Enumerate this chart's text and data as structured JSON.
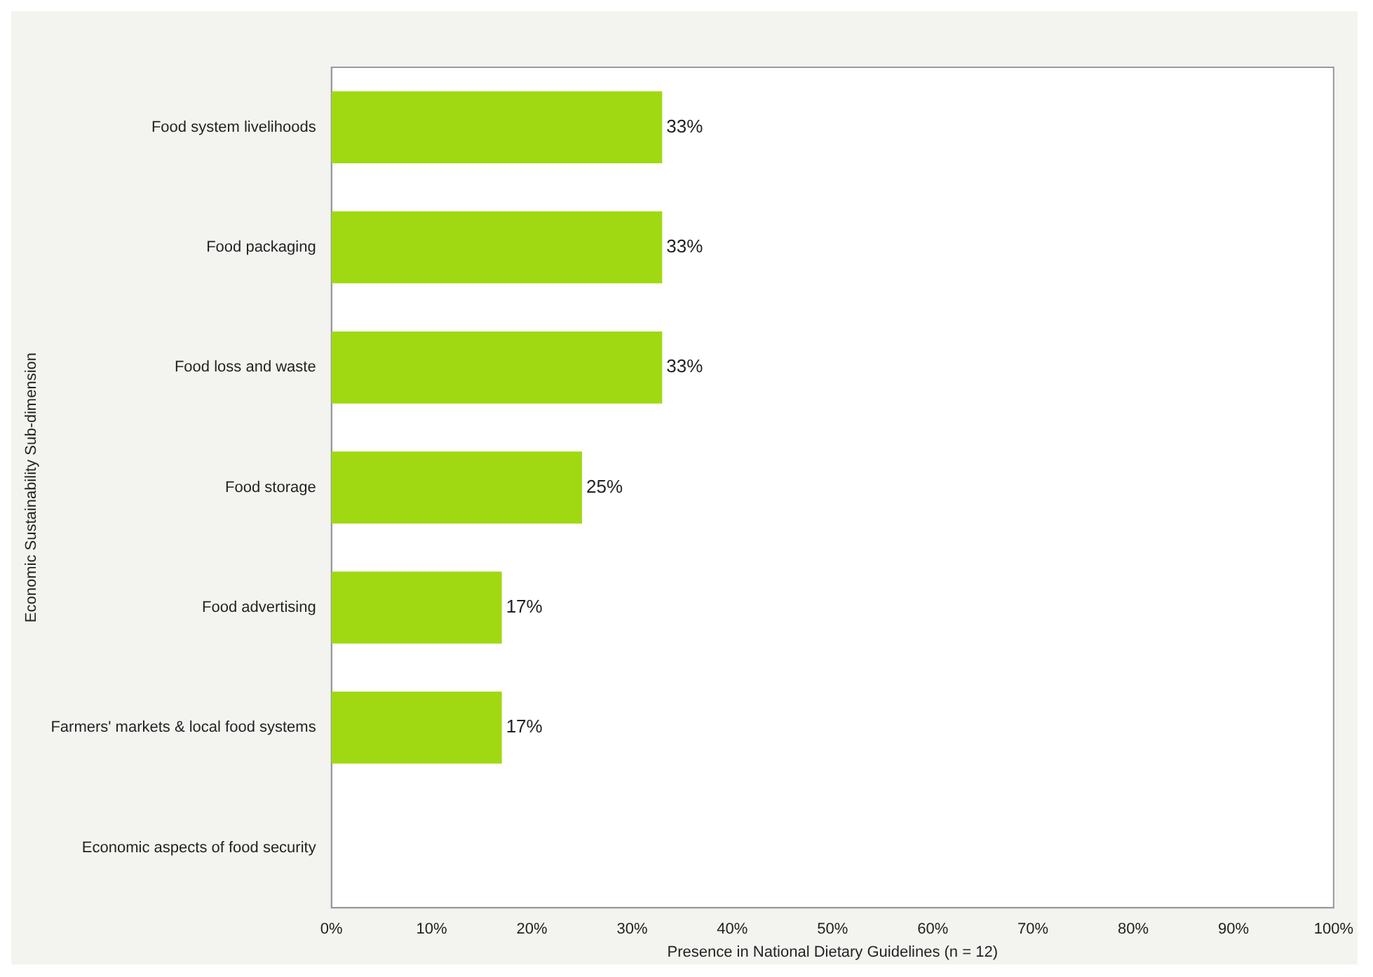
{
  "chart_data": {
    "type": "bar",
    "orientation": "horizontal",
    "xlabel": "Presence in National Dietary Guidelines (n = 12)",
    "ylabel": "Economic Sustainability Sub-dimension",
    "categories": [
      "Food system livelihoods",
      "Food packaging",
      "Food loss and waste",
      "Food storage",
      "Food advertising",
      "Farmers' markets & local food systems",
      "Economic aspects of food security"
    ],
    "values": [
      33,
      33,
      33,
      25,
      17,
      17,
      0
    ],
    "value_labels": [
      "33%",
      "33%",
      "33%",
      "25%",
      "17%",
      "17%",
      null
    ],
    "color": "#a0d911",
    "xlim": [
      0,
      100
    ],
    "xticks": [
      {
        "value": 0,
        "label": "0%"
      },
      {
        "value": 10,
        "label": "10%"
      },
      {
        "value": 20,
        "label": "20%"
      },
      {
        "value": 30,
        "label": "30%"
      },
      {
        "value": 40,
        "label": "40%"
      },
      {
        "value": 50,
        "label": "50%"
      },
      {
        "value": 60,
        "label": "60%"
      },
      {
        "value": 70,
        "label": "70%"
      },
      {
        "value": 80,
        "label": "80%"
      },
      {
        "value": 90,
        "label": "90%"
      },
      {
        "value": 100,
        "label": "100%"
      }
    ],
    "grid": false,
    "legend": false
  }
}
